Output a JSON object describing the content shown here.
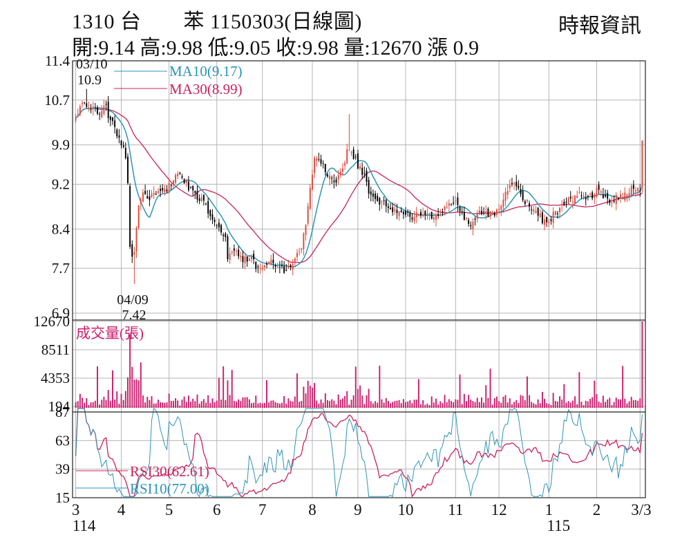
{
  "header": {
    "title": "1310 台　　苯 1150303(日線圖)",
    "publisher": "時報資訊",
    "quote": "開:9.14 高:9.98 低:9.05 收:9.98 量:12670 漲 0.9"
  },
  "colors": {
    "up": "#e0483a",
    "down": "#000000",
    "ma10": "#2d93b8",
    "ma30": "#c8235c",
    "volume": "#cc1f6e",
    "rsi10": "#2d93b8",
    "rsi30": "#c8235c",
    "grid": "#b5b5b5"
  },
  "chart_data": {
    "type": "candlestick",
    "title": "1310 台　　苯 1150303(日線圖)",
    "grid": true,
    "x_ticks": [
      "3",
      "4",
      "5",
      "6",
      "7",
      "8",
      "9",
      "10",
      "11",
      "12",
      "1",
      "2",
      "3/3"
    ],
    "year_labels": [
      "114",
      "115"
    ],
    "price_panel": {
      "y_ticks": [
        "11.4",
        "10.7",
        "9.9",
        "9.2",
        "8.4",
        "7.7",
        "6.9"
      ],
      "ylim": [
        6.9,
        11.4
      ],
      "legend": [
        {
          "label": "MA10(9.17)",
          "color": "#2d93b8"
        },
        {
          "label": "MA30(8.99)",
          "color": "#c8235c"
        }
      ],
      "annotations": [
        {
          "date": "03/10",
          "value": "10.9"
        },
        {
          "date": "04/09",
          "value": "7.42"
        }
      ],
      "close_keypoints": [
        [
          "03-03",
          10.4
        ],
        [
          "03-07",
          10.65
        ],
        [
          "03-10",
          10.55
        ],
        [
          "03-14",
          10.6
        ],
        [
          "03-18",
          10.5
        ],
        [
          "03-21",
          10.55
        ],
        [
          "03-25",
          10.35
        ],
        [
          "03-28",
          10.1
        ],
        [
          "04-01",
          9.95
        ],
        [
          "04-03",
          9.7
        ],
        [
          "04-07",
          8.05
        ],
        [
          "04-08",
          7.9
        ],
        [
          "04-09",
          8.0
        ],
        [
          "04-10",
          8.35
        ],
        [
          "04-11",
          8.75
        ],
        [
          "04-15",
          9.0
        ],
        [
          "04-18",
          8.95
        ],
        [
          "04-23",
          9.05
        ],
        [
          "04-28",
          9.05
        ],
        [
          "05-02",
          9.2
        ],
        [
          "05-07",
          9.35
        ],
        [
          "05-12",
          9.25
        ],
        [
          "05-16",
          9.05
        ],
        [
          "05-21",
          8.95
        ],
        [
          "05-26",
          8.8
        ],
        [
          "06-02",
          8.4
        ],
        [
          "06-05",
          8.3
        ],
        [
          "06-09",
          7.9
        ],
        [
          "06-13",
          8.05
        ],
        [
          "06-18",
          7.85
        ],
        [
          "06-23",
          7.9
        ],
        [
          "06-27",
          7.7
        ],
        [
          "07-02",
          7.75
        ],
        [
          "07-07",
          7.8
        ],
        [
          "07-11",
          7.7
        ],
        [
          "07-16",
          7.65
        ],
        [
          "07-21",
          7.8
        ],
        [
          "07-25",
          8.1
        ],
        [
          "07-29",
          8.4
        ],
        [
          "07-31",
          9.2
        ],
        [
          "08-04",
          9.65
        ],
        [
          "08-08",
          9.55
        ],
        [
          "08-13",
          9.3
        ],
        [
          "08-18",
          9.2
        ],
        [
          "08-21",
          9.5
        ],
        [
          "08-26",
          9.85
        ],
        [
          "08-29",
          9.65
        ],
        [
          "09-03",
          9.4
        ],
        [
          "09-08",
          9.1
        ],
        [
          "09-12",
          8.95
        ],
        [
          "09-18",
          8.85
        ],
        [
          "09-24",
          8.7
        ],
        [
          "09-30",
          8.65
        ],
        [
          "10-06",
          8.6
        ],
        [
          "10-13",
          8.7
        ],
        [
          "10-20",
          8.6
        ],
        [
          "10-27",
          8.8
        ],
        [
          "11-03",
          8.9
        ],
        [
          "11-07",
          8.6
        ],
        [
          "11-13",
          8.5
        ],
        [
          "11-19",
          8.7
        ],
        [
          "11-25",
          8.65
        ],
        [
          "12-01",
          8.75
        ],
        [
          "12-05",
          9.1
        ],
        [
          "12-10",
          9.25
        ],
        [
          "12-16",
          8.95
        ],
        [
          "12-22",
          8.7
        ],
        [
          "12-29",
          8.55
        ],
        [
          "01-05",
          8.65
        ],
        [
          "01-12",
          8.9
        ],
        [
          "01-19",
          9.0
        ],
        [
          "01-26",
          8.95
        ],
        [
          "02-02",
          9.1
        ],
        [
          "02-09",
          8.9
        ],
        [
          "02-16",
          9.0
        ],
        [
          "02-23",
          9.1
        ],
        [
          "02-27",
          9.15
        ],
        [
          "03-02",
          9.08
        ],
        [
          "03-03",
          9.98
        ]
      ]
    },
    "volume_panel": {
      "label": "成交量(張)",
      "y_ticks": [
        "12670",
        "8511",
        "4353",
        "194"
      ],
      "ylim": [
        0,
        12670
      ],
      "last_volume": 12670
    },
    "rsi_panel": {
      "y_ticks": [
        "87",
        "63",
        "39",
        "15"
      ],
      "ylim": [
        15,
        87
      ],
      "legend": [
        {
          "label": "RSI30(62.61)",
          "color": "#c8235c"
        },
        {
          "label": "RSI10(77.00)",
          "color": "#2d93b8"
        }
      ]
    }
  }
}
